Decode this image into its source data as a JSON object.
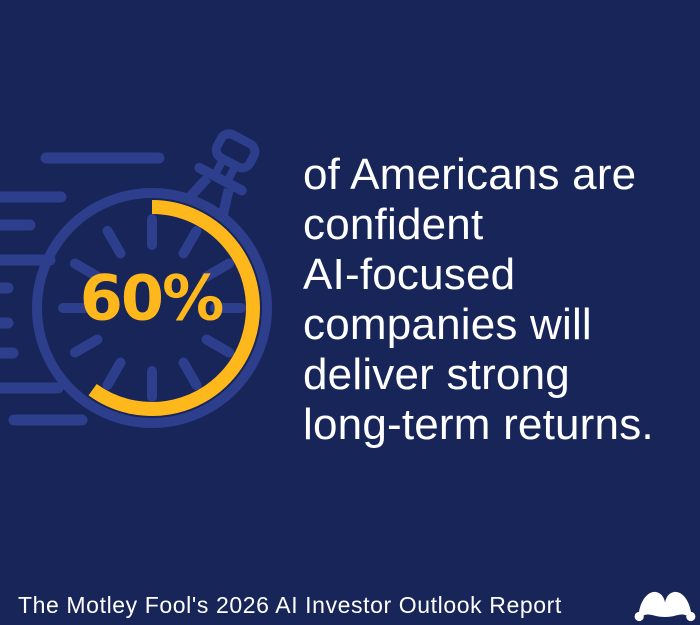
{
  "background_color": "#182558",
  "accent_blue": "#2C3E8C",
  "accent_gold": "#FFB81C",
  "text_color": "#FFFFFF",
  "stat": {
    "value": "60%"
  },
  "headline": {
    "full_text": "of Americans are confident AI-focused companies will deliver strong long-term returns.",
    "lines": [
      "of Americans are",
      "confident",
      "AI-focused",
      "companies will",
      "deliver strong",
      "long-term returns."
    ]
  },
  "illustration": {
    "icon": "speeding-stopwatch-icon",
    "percent": 60,
    "arc_sweep_deg": 216
  },
  "footer": {
    "source": "The Motley Fool's 2026 AI Investor Outlook Report"
  },
  "logo": {
    "icon": "motley-fool-jester-cap-icon",
    "trademark": "™"
  }
}
